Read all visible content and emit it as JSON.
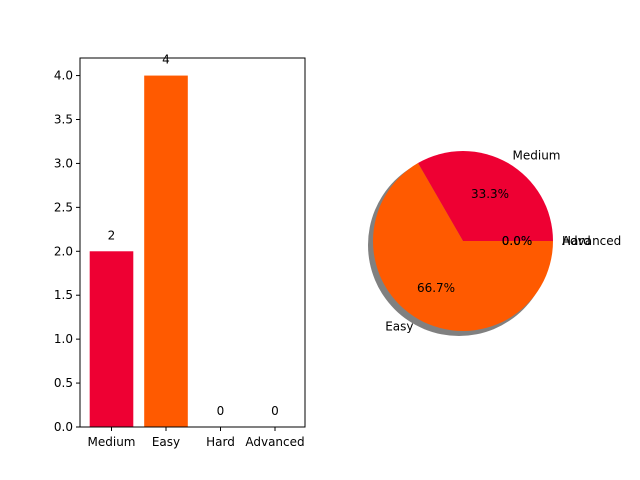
{
  "chart_data": [
    {
      "type": "bar",
      "categories": [
        "Medium",
        "Easy",
        "Hard",
        "Advanced"
      ],
      "values": [
        2,
        4,
        0,
        0
      ],
      "data_labels": [
        "2",
        "4",
        "0",
        "0"
      ],
      "colors": [
        "#ee0033",
        "#ff5a00",
        "#ee0033",
        "#ff5a00"
      ],
      "ylim": [
        0,
        4.2
      ],
      "yticks": [
        "0.0",
        "0.5",
        "1.0",
        "1.5",
        "2.0",
        "2.5",
        "3.0",
        "3.5",
        "4.0"
      ],
      "grid": false,
      "title": "",
      "xlabel": "",
      "ylabel": ""
    },
    {
      "type": "pie",
      "labels": [
        "Medium",
        "Easy",
        "Hard",
        "Advanced"
      ],
      "values": [
        2,
        4,
        0,
        0
      ],
      "percent_labels": [
        "33.3%",
        "66.7%",
        "0.0%",
        "0.0%"
      ],
      "colors": [
        "#ee0033",
        "#ff5a00",
        "#ee0033",
        "#ff5a00"
      ],
      "shadow": true,
      "startangle": 0,
      "title": ""
    }
  ]
}
